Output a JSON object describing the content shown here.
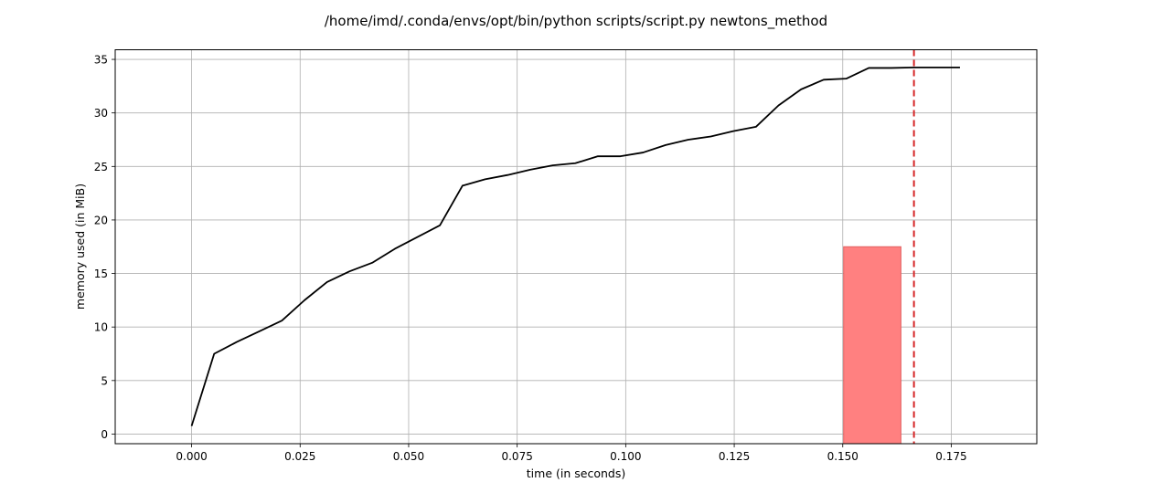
{
  "chart_data": {
    "type": "line",
    "title": "/home/imd/.conda/envs/opt/bin/python scripts/script.py newtons_method",
    "xlabel": "time (in seconds)",
    "ylabel": "memory used (in MiB)",
    "xlim": [
      -0.0176,
      0.1947
    ],
    "ylim": [
      -0.9,
      35.9
    ],
    "grid": true,
    "x_ticks": [
      0.0,
      0.025,
      0.05,
      0.075,
      0.1,
      0.125,
      0.15,
      0.175
    ],
    "x_tick_labels": [
      "0.000",
      "0.025",
      "0.050",
      "0.075",
      "0.100",
      "0.125",
      "0.150",
      "0.175"
    ],
    "y_ticks": [
      0,
      5,
      10,
      15,
      20,
      25,
      30,
      35
    ],
    "y_tick_labels": [
      "0",
      "5",
      "10",
      "15",
      "20",
      "25",
      "30",
      "35"
    ],
    "series": [
      {
        "color": "#000000",
        "x": [
          0.0,
          0.0052,
          0.0104,
          0.0156,
          0.0208,
          0.026,
          0.0312,
          0.0364,
          0.0416,
          0.0468,
          0.052,
          0.0572,
          0.0624,
          0.0676,
          0.0728,
          0.078,
          0.0832,
          0.0884,
          0.0936,
          0.0988,
          0.104,
          0.1092,
          0.1144,
          0.1196,
          0.1248,
          0.13,
          0.1352,
          0.1404,
          0.1456,
          0.1508,
          0.156,
          0.1612,
          0.1664,
          0.1716,
          0.177
        ],
        "y": [
          0.75,
          7.5,
          8.6,
          9.6,
          10.6,
          12.5,
          14.2,
          15.2,
          16.0,
          17.3,
          18.4,
          19.5,
          23.2,
          23.8,
          24.2,
          24.7,
          25.1,
          25.3,
          25.95,
          25.95,
          26.3,
          27.0,
          27.5,
          27.8,
          28.3,
          28.7,
          30.7,
          32.2,
          33.1,
          33.2,
          34.2,
          34.2,
          34.25,
          34.25,
          34.25
        ]
      }
    ],
    "annotations": [
      {
        "type": "span",
        "x": [
          0.1502,
          0.1634
        ],
        "y": [
          -0.9,
          17.5
        ],
        "color": "#ff8080"
      },
      {
        "type": "vline",
        "x": 0.1664,
        "style": "dashed",
        "color": "#d62728"
      }
    ]
  }
}
